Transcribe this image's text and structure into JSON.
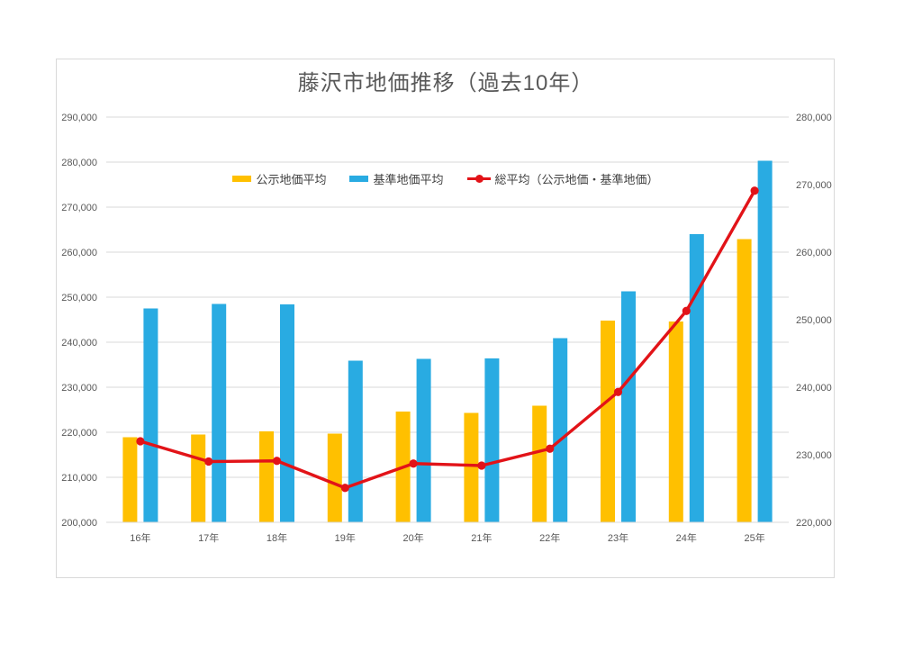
{
  "chart_data": {
    "type": "bar",
    "title": "藤沢市地価推移（過去10年）",
    "categories": [
      "16年",
      "17年",
      "18年",
      "19年",
      "20年",
      "21年",
      "22年",
      "23年",
      "24年",
      "25年"
    ],
    "series": [
      {
        "name": "公示地価平均",
        "kind": "bar",
        "axis": "left",
        "color": "#FFC000",
        "values": [
          218900,
          219500,
          220200,
          219700,
          224600,
          224300,
          225900,
          244800,
          244600,
          262900
        ]
      },
      {
        "name": "基準地価平均",
        "kind": "bar",
        "axis": "left",
        "color": "#29ABE2",
        "values": [
          247500,
          248500,
          248400,
          235900,
          236300,
          236400,
          240900,
          251300,
          264000,
          280300
        ]
      },
      {
        "name": "総平均（公示地価・基準地価）",
        "kind": "line",
        "axis": "right",
        "color": "#E21318",
        "values": [
          232000,
          229000,
          229100,
          225100,
          228700,
          228400,
          230900,
          239300,
          251300,
          269100
        ]
      }
    ],
    "left_axis": {
      "min": 200000,
      "max": 290000,
      "step": 10000,
      "ticks": [
        "290,000",
        "280,000",
        "270,000",
        "260,000",
        "250,000",
        "240,000",
        "230,000",
        "220,000",
        "210,000",
        "200,000"
      ]
    },
    "right_axis": {
      "min": 220000,
      "max": 280000,
      "step": 10000,
      "ticks": [
        "280,000",
        "270,000",
        "260,000",
        "250,000",
        "240,000",
        "230,000",
        "220,000"
      ]
    },
    "grid": true,
    "legend_position": "top-inside",
    "colors": {
      "grid": "#d9d9d9",
      "axis_text": "#595959",
      "title_text": "#595959",
      "legend_text": "#404040",
      "frame_border": "#d9d9d9"
    }
  }
}
